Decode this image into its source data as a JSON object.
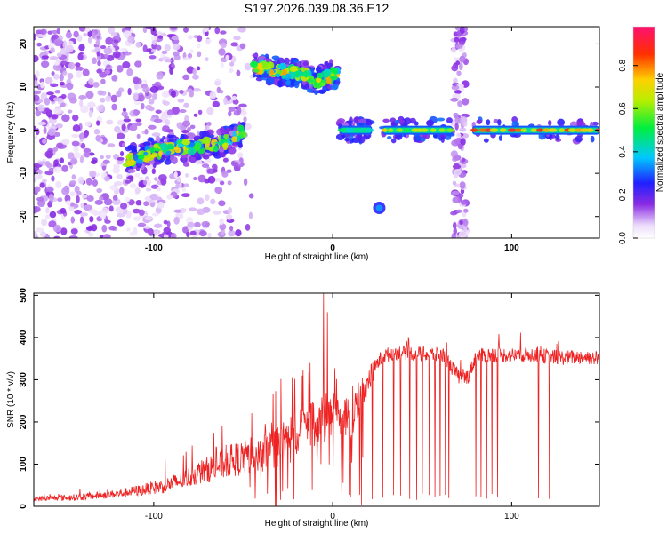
{
  "figure": {
    "title": "S197.2026.039.08.36.E12"
  },
  "chart_data": [
    {
      "type": "heatmap",
      "xlabel": "Height of straight line (km)",
      "ylabel": "Frequency (Hz)",
      "xlim": [
        -167,
        149
      ],
      "ylim": [
        -25,
        24
      ],
      "x_ticks": [
        -100,
        0,
        100
      ],
      "x_tick_labels": [
        "-100",
        "0",
        "100"
      ],
      "y_ticks": [
        -20,
        -10,
        0,
        10,
        20
      ],
      "y_tick_labels": [
        "-20",
        "-10",
        "0",
        "10",
        "20"
      ],
      "colorbar": {
        "label": "Normalized spectral amplitude",
        "range": [
          0,
          0.98
        ],
        "ticks": [
          0,
          0.2,
          0.4,
          0.6,
          0.8
        ],
        "tick_labels": [
          "0.0",
          "0.2",
          "0.4",
          "0.6",
          "0.8"
        ]
      },
      "features": [
        {
          "name": "noise-cloud",
          "x_range": [
            -167,
            -45
          ],
          "y_range": [
            -25,
            24
          ],
          "amplitude": 0.12
        },
        {
          "name": "descending-trace",
          "x": [
            -115,
            -100,
            -85,
            -70,
            -58,
            -50
          ],
          "y": [
            -7,
            -5,
            -4,
            -3.5,
            -2.5,
            -0.5
          ],
          "amplitude": 0.3
        },
        {
          "name": "upper-trace",
          "x": [
            -44,
            -35,
            -25,
            -15,
            -10,
            -5,
            0,
            3
          ],
          "y": [
            15,
            14,
            13.5,
            13,
            11,
            12,
            13,
            13
          ],
          "amplitude": 0.35
        },
        {
          "name": "zero-line-segment-1",
          "x_range": [
            4,
            22
          ],
          "y": 0,
          "amplitude": 0.5
        },
        {
          "name": "zero-line-segment-2",
          "x_range": [
            28,
            67
          ],
          "y": 0,
          "amplitude": 0.7
        },
        {
          "name": "zero-line-segment-3",
          "x_range": [
            78,
            149
          ],
          "y": 0,
          "amplitude": 0.9
        },
        {
          "name": "isolated-blob",
          "x": 26,
          "y": -18,
          "amplitude": 0.35
        },
        {
          "name": "vertical-stripe",
          "x": 71,
          "y_range": [
            -25,
            24
          ],
          "amplitude": 0.12
        }
      ]
    },
    {
      "type": "line",
      "xlabel": "Height of straight line (km)",
      "ylabel": "SNR (10 * v/v)",
      "xlim": [
        -167,
        149
      ],
      "ylim": [
        0,
        505
      ],
      "x_ticks": [
        -100,
        0,
        100
      ],
      "x_tick_labels": [
        "-100",
        "0",
        "100"
      ],
      "y_ticks": [
        0,
        100,
        200,
        300,
        400,
        500
      ],
      "y_tick_labels": [
        "0",
        "100",
        "200",
        "300",
        "400",
        "500"
      ],
      "series": [
        {
          "name": "SNR",
          "color": "#ee2222",
          "x": [
            -167,
            -140,
            -120,
            -105,
            -95,
            -85,
            -75,
            -65,
            -55,
            -45,
            -35,
            -25,
            -15,
            -10,
            -5,
            0,
            5,
            10,
            15,
            20,
            25,
            28,
            35,
            45,
            55,
            62,
            68,
            72,
            76,
            80,
            90,
            100,
            110,
            120,
            130,
            140,
            149
          ],
          "baseline": [
            18,
            22,
            30,
            40,
            48,
            60,
            80,
            95,
            110,
            120,
            135,
            155,
            180,
            200,
            210,
            230,
            210,
            200,
            260,
            300,
            340,
            355,
            365,
            362,
            360,
            358,
            320,
            300,
            310,
            355,
            360,
            358,
            360,
            355,
            352,
            355,
            350
          ],
          "noise": [
            6,
            8,
            10,
            14,
            18,
            22,
            28,
            35,
            40,
            45,
            50,
            55,
            60,
            60,
            60,
            60,
            55,
            50,
            40,
            30,
            18,
            18,
            18,
            18,
            18,
            18,
            18,
            18,
            18,
            18,
            18,
            18,
            18,
            18,
            18,
            18,
            18
          ],
          "spikes": [
            {
              "x": -5,
              "value": 505
            },
            {
              "x": -3,
              "value": 460
            }
          ],
          "dropouts_x": [
            5,
            10,
            15,
            22,
            28,
            34,
            38,
            43,
            47,
            50,
            54,
            57,
            60,
            63,
            65,
            80,
            83,
            86,
            89,
            92,
            115,
            121
          ]
        }
      ]
    }
  ]
}
